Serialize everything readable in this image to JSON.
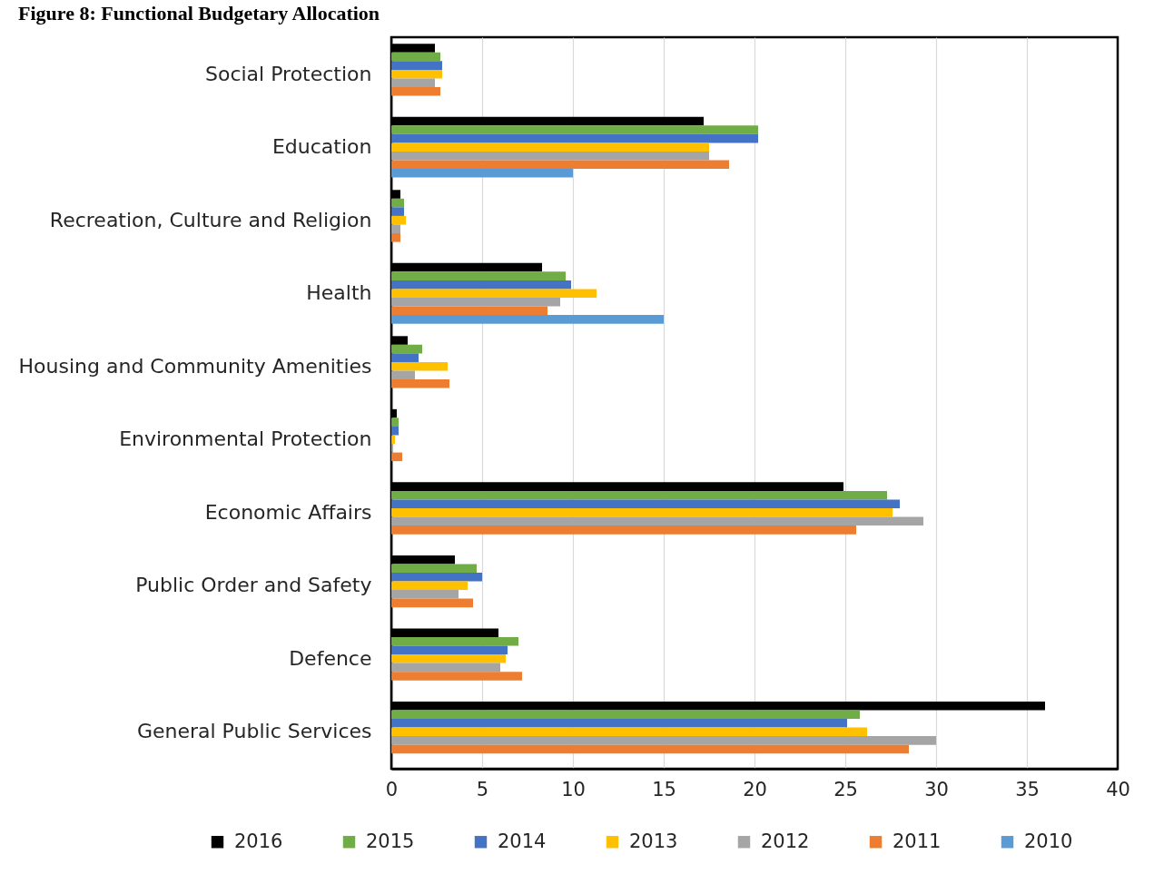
{
  "chart_data": {
    "type": "bar",
    "orientation": "horizontal",
    "title": "Figure 8: Functional Budgetary Allocation",
    "categories": [
      "Social Protection",
      "Education",
      "Recreation, Culture and Religion",
      "Health",
      "Housing and Community Amenities",
      "Environmental Protection",
      "Economic Affairs",
      "Public Order and Safety",
      "Defence",
      "General Public Services"
    ],
    "series": [
      {
        "name": "2016",
        "color": "#000000",
        "values": [
          2.4,
          17.2,
          0.5,
          8.3,
          0.9,
          0.3,
          24.9,
          3.5,
          5.9,
          36.0
        ]
      },
      {
        "name": "2015",
        "color": "#70ad47",
        "values": [
          2.7,
          20.2,
          0.7,
          9.6,
          1.7,
          0.4,
          27.3,
          4.7,
          7.0,
          25.8
        ]
      },
      {
        "name": "2014",
        "color": "#4472c4",
        "values": [
          2.8,
          20.2,
          0.7,
          9.9,
          1.5,
          0.4,
          28.0,
          5.0,
          6.4,
          25.1
        ]
      },
      {
        "name": "2013",
        "color": "#ffc000",
        "values": [
          2.8,
          17.5,
          0.8,
          11.3,
          3.1,
          0.2,
          27.6,
          4.2,
          6.3,
          26.2
        ]
      },
      {
        "name": "2012",
        "color": "#a5a5a5",
        "values": [
          2.4,
          17.5,
          0.5,
          9.3,
          1.3,
          0.1,
          29.3,
          3.7,
          6.0,
          30.0
        ]
      },
      {
        "name": "2011",
        "color": "#ed7d31",
        "values": [
          2.7,
          18.6,
          0.5,
          8.6,
          3.2,
          0.6,
          25.6,
          4.5,
          7.2,
          28.5
        ]
      },
      {
        "name": "2010",
        "color": "#5b9bd5",
        "values": [
          null,
          10.0,
          null,
          15.0,
          null,
          null,
          null,
          null,
          null,
          null
        ]
      }
    ],
    "xlim": [
      0,
      40
    ],
    "xticks": [
      0,
      5,
      10,
      15,
      20,
      25,
      30,
      35,
      40
    ],
    "grid": "x",
    "legend": "bottom"
  }
}
